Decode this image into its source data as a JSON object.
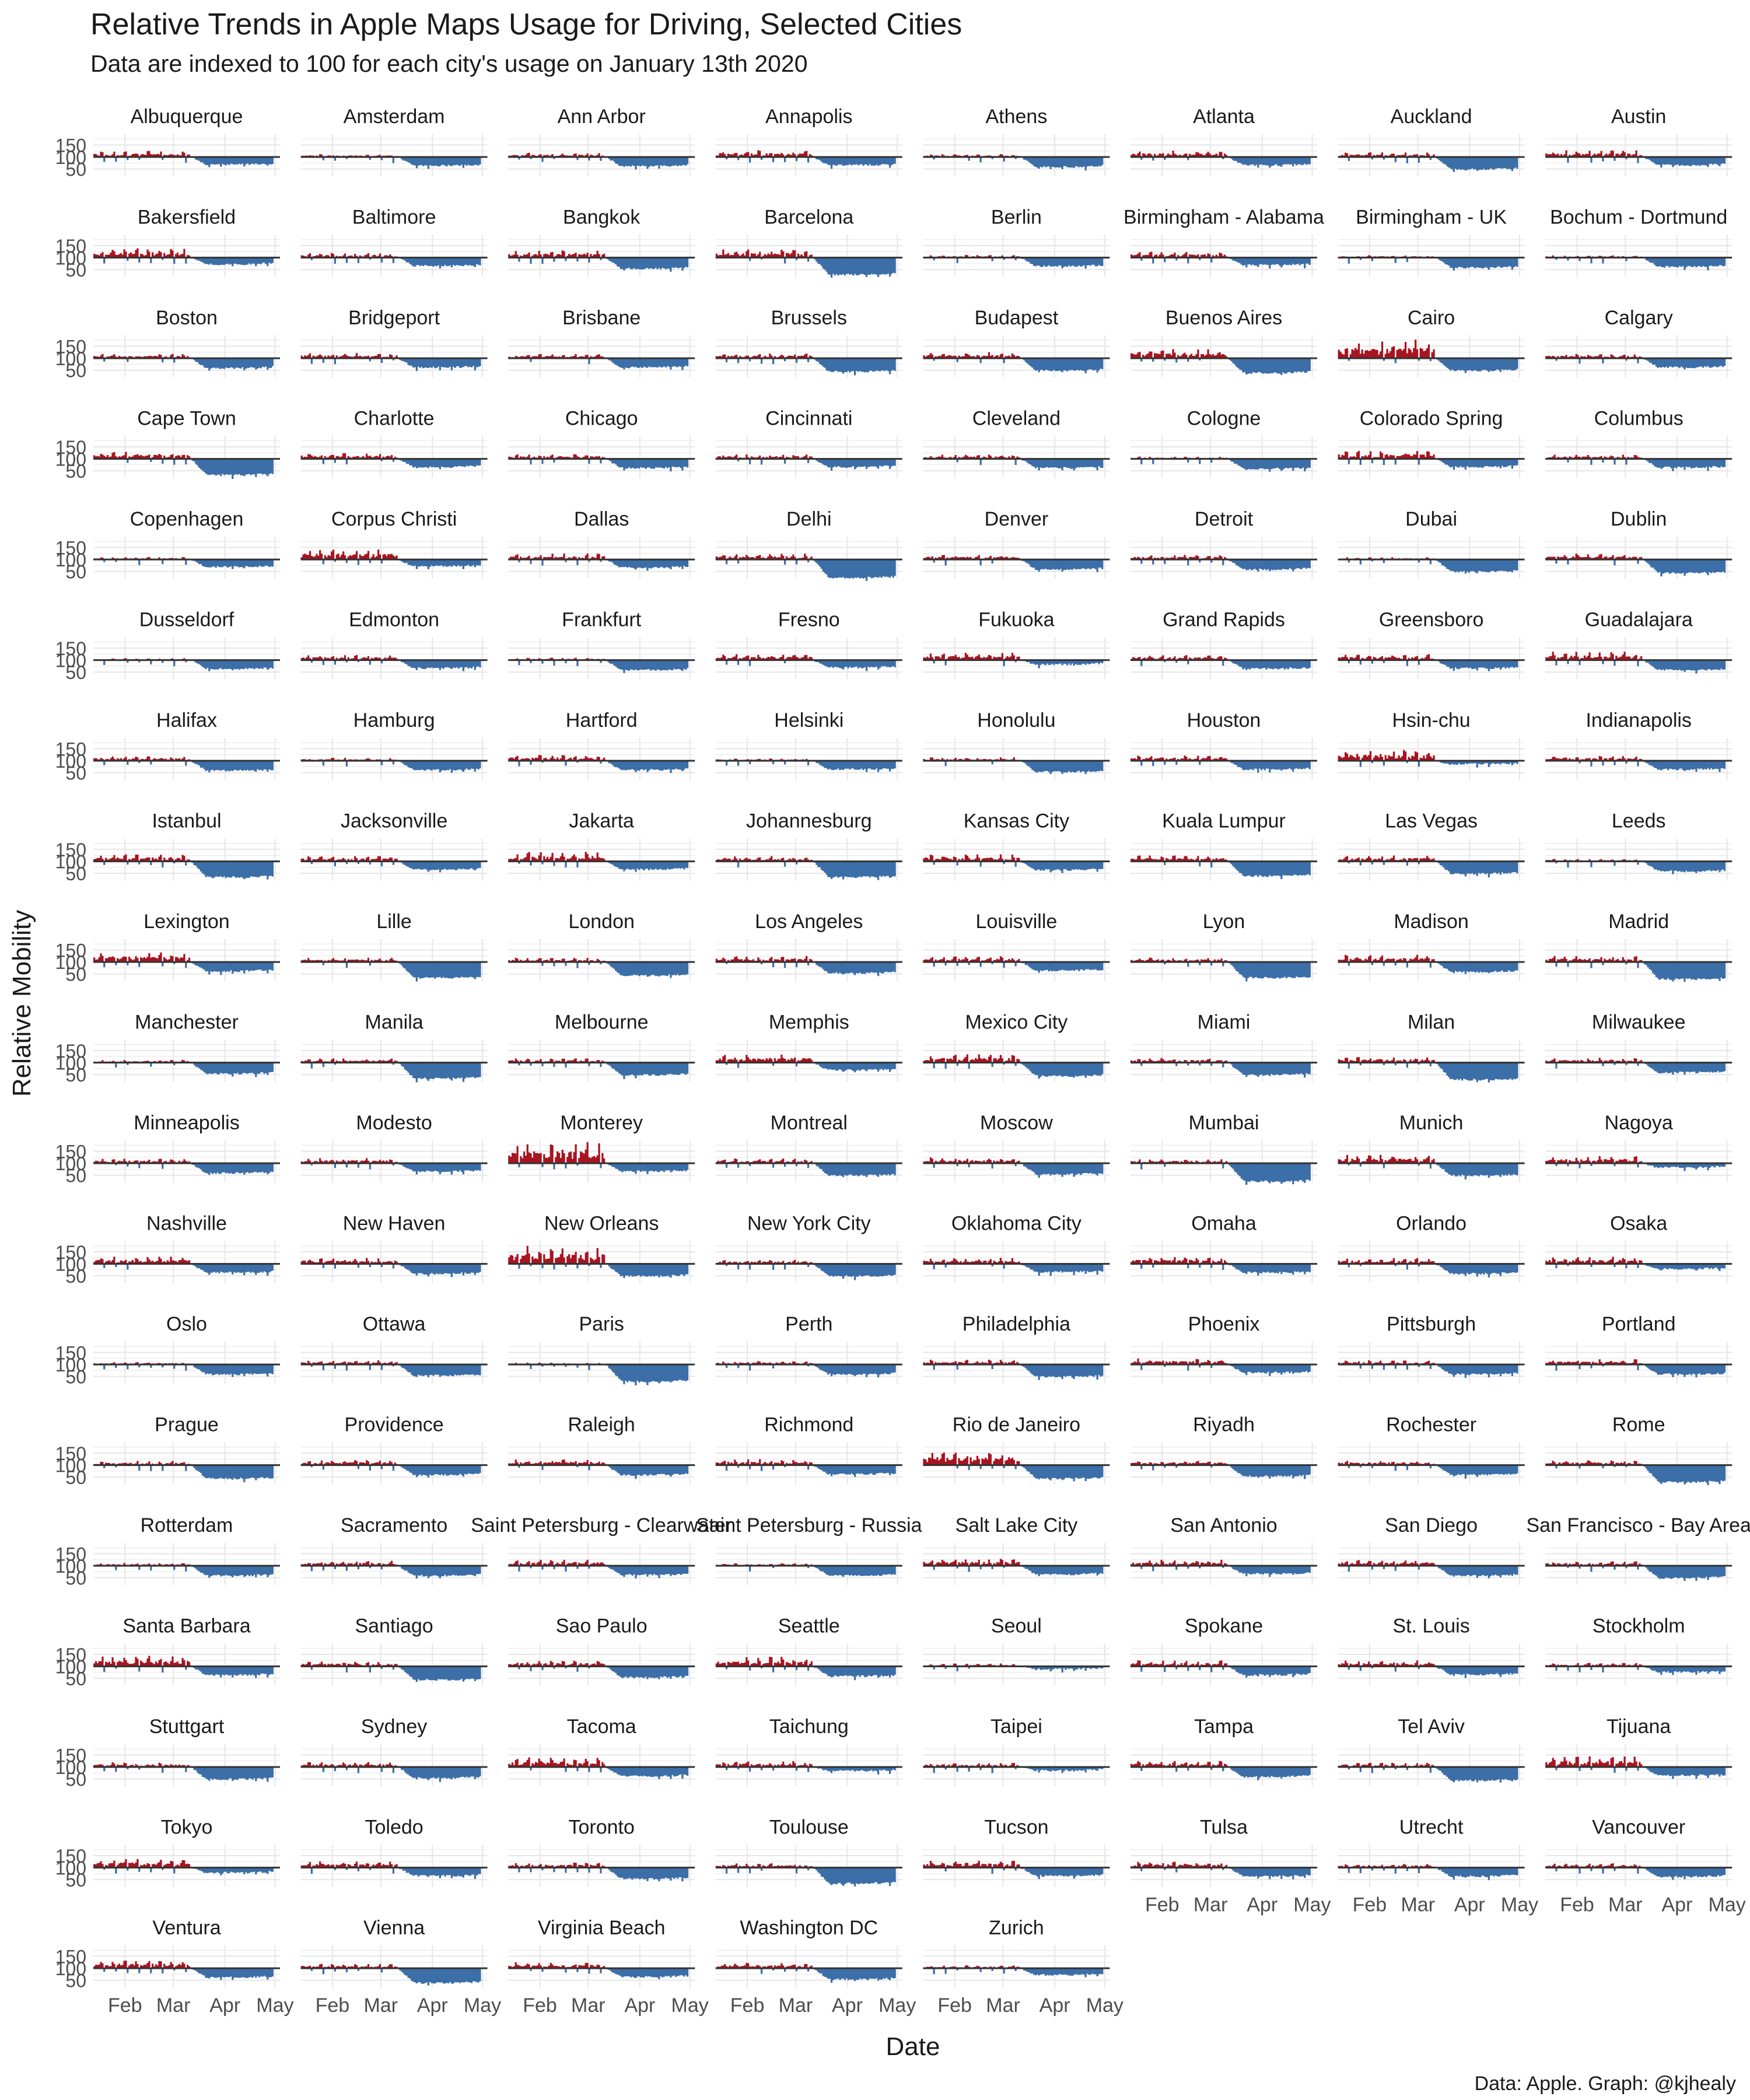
{
  "chart_data": {
    "type": "bar",
    "title": "Relative Trends in Apple Maps Usage for Driving, Selected Cities",
    "subtitle": "Data are indexed to 100 for each city's usage on January 13th 2020",
    "xlabel": "Date",
    "ylabel": "Relative Mobility",
    "caption": "Data: Apple. Graph: @kjhealy",
    "baseline": 100,
    "y_ticks": [
      "50",
      "100",
      "150"
    ],
    "x_ticks": [
      "Feb",
      "Mar",
      "Apr",
      "May"
    ],
    "colors": {
      "above": "#A81420",
      "below": "#3C6EA8",
      "grid": "#e6e6e6",
      "baseline": "#333333"
    },
    "facets": [
      {
        "city": "Albuquerque",
        "peak": 125,
        "trough": 65
      },
      {
        "city": "Amsterdam",
        "peak": 112,
        "trough": 60
      },
      {
        "city": "Ann Arbor",
        "peak": 118,
        "trough": 58
      },
      {
        "city": "Annapolis",
        "peak": 130,
        "trough": 62
      },
      {
        "city": "Athens",
        "peak": 112,
        "trough": 55
      },
      {
        "city": "Atlanta",
        "peak": 128,
        "trough": 62
      },
      {
        "city": "Auckland",
        "peak": 120,
        "trough": 45
      },
      {
        "city": "Austin",
        "peak": 128,
        "trough": 62
      },
      {
        "city": "Bakersfield",
        "peak": 140,
        "trough": 68
      },
      {
        "city": "Baltimore",
        "peak": 120,
        "trough": 62
      },
      {
        "city": "Bangkok",
        "peak": 130,
        "trough": 50
      },
      {
        "city": "Barcelona",
        "peak": 135,
        "trough": 25
      },
      {
        "city": "Berlin",
        "peak": 112,
        "trough": 60
      },
      {
        "city": "Birmingham - Alabama",
        "peak": 125,
        "trough": 65
      },
      {
        "city": "Birmingham - UK",
        "peak": 110,
        "trough": 55
      },
      {
        "city": "Bochum - Dortmund",
        "peak": 110,
        "trough": 58
      },
      {
        "city": "Boston",
        "peak": 118,
        "trough": 55
      },
      {
        "city": "Bridgeport",
        "peak": 122,
        "trough": 58
      },
      {
        "city": "Brisbane",
        "peak": 118,
        "trough": 58
      },
      {
        "city": "Brussels",
        "peak": 120,
        "trough": 40
      },
      {
        "city": "Budapest",
        "peak": 125,
        "trough": 45
      },
      {
        "city": "Buenos Aires",
        "peak": 140,
        "trough": 35
      },
      {
        "city": "Cairo",
        "peak": 180,
        "trough": 45
      },
      {
        "city": "Calgary",
        "peak": 118,
        "trough": 58
      },
      {
        "city": "Cape Town",
        "peak": 130,
        "trough": 30
      },
      {
        "city": "Charlotte",
        "peak": 125,
        "trough": 62
      },
      {
        "city": "Chicago",
        "peak": 120,
        "trough": 58
      },
      {
        "city": "Cincinnati",
        "peak": 120,
        "trough": 62
      },
      {
        "city": "Cleveland",
        "peak": 118,
        "trough": 58
      },
      {
        "city": "Cologne",
        "peak": 110,
        "trough": 55
      },
      {
        "city": "Colorado Spring",
        "peak": 135,
        "trough": 62
      },
      {
        "city": "Columbus",
        "peak": 118,
        "trough": 60
      },
      {
        "city": "Copenhagen",
        "peak": 110,
        "trough": 65
      },
      {
        "city": "Corpus Christi",
        "peak": 145,
        "trough": 68
      },
      {
        "city": "Dallas",
        "peak": 125,
        "trough": 62
      },
      {
        "city": "Delhi",
        "peak": 125,
        "trough": 20
      },
      {
        "city": "Denver",
        "peak": 120,
        "trough": 55
      },
      {
        "city": "Detroit",
        "peak": 120,
        "trough": 55
      },
      {
        "city": "Dubai",
        "peak": 110,
        "trough": 45
      },
      {
        "city": "Dublin",
        "peak": 125,
        "trough": 40
      },
      {
        "city": "Dusseldorf",
        "peak": 108,
        "trough": 60
      },
      {
        "city": "Edmonton",
        "peak": 122,
        "trough": 62
      },
      {
        "city": "Frankfurt",
        "peak": 110,
        "trough": 55
      },
      {
        "city": "Fresno",
        "peak": 125,
        "trough": 65
      },
      {
        "city": "Fukuoka",
        "peak": 132,
        "trough": 78
      },
      {
        "city": "Grand Rapids",
        "peak": 122,
        "trough": 60
      },
      {
        "city": "Greensboro",
        "peak": 125,
        "trough": 62
      },
      {
        "city": "Guadalajara",
        "peak": 135,
        "trough": 55
      },
      {
        "city": "Halifax",
        "peak": 120,
        "trough": 55
      },
      {
        "city": "Hamburg",
        "peak": 112,
        "trough": 58
      },
      {
        "city": "Hartford",
        "peak": 125,
        "trough": 58
      },
      {
        "city": "Helsinki",
        "peak": 110,
        "trough": 60
      },
      {
        "city": "Honolulu",
        "peak": 115,
        "trough": 50
      },
      {
        "city": "Houston",
        "peak": 122,
        "trough": 60
      },
      {
        "city": "Hsin-chu",
        "peak": 145,
        "trough": 82
      },
      {
        "city": "Indianapolis",
        "peak": 120,
        "trough": 60
      },
      {
        "city": "Istanbul",
        "peak": 130,
        "trough": 30
      },
      {
        "city": "Jacksonville",
        "peak": 122,
        "trough": 62
      },
      {
        "city": "Jakarta",
        "peak": 140,
        "trough": 62
      },
      {
        "city": "Johannesburg",
        "peak": 122,
        "trough": 30
      },
      {
        "city": "Kansas City",
        "peak": 130,
        "trough": 60
      },
      {
        "city": "Kuala Lumpur",
        "peak": 125,
        "trough": 35
      },
      {
        "city": "Las Vegas",
        "peak": 125,
        "trough": 45
      },
      {
        "city": "Leeds",
        "peak": 110,
        "trough": 55
      },
      {
        "city": "Lexington",
        "peak": 140,
        "trough": 58
      },
      {
        "city": "Lille",
        "peak": 118,
        "trough": 30
      },
      {
        "city": "London",
        "peak": 118,
        "trough": 40
      },
      {
        "city": "Los Angeles",
        "peak": 125,
        "trough": 50
      },
      {
        "city": "Louisville",
        "peak": 125,
        "trough": 60
      },
      {
        "city": "Lyon",
        "peak": 120,
        "trough": 30
      },
      {
        "city": "Madison",
        "peak": 130,
        "trough": 55
      },
      {
        "city": "Madrid",
        "peak": 125,
        "trough": 25
      },
      {
        "city": "Manchester",
        "peak": 112,
        "trough": 50
      },
      {
        "city": "Manila",
        "peak": 118,
        "trough": 30
      },
      {
        "city": "Melbourne",
        "peak": 118,
        "trough": 45
      },
      {
        "city": "Memphis",
        "peak": 135,
        "trough": 65
      },
      {
        "city": "Mexico City",
        "peak": 135,
        "trough": 40
      },
      {
        "city": "Miami",
        "peak": 120,
        "trough": 45
      },
      {
        "city": "Milan",
        "peak": 125,
        "trough": 25
      },
      {
        "city": "Milwaukee",
        "peak": 120,
        "trough": 55
      },
      {
        "city": "Minneapolis",
        "peak": 120,
        "trough": 55
      },
      {
        "city": "Modesto",
        "peak": 122,
        "trough": 62
      },
      {
        "city": "Monterey",
        "peak": 190,
        "trough": 62
      },
      {
        "city": "Montreal",
        "peak": 120,
        "trough": 45
      },
      {
        "city": "Moscow",
        "peak": 125,
        "trough": 50
      },
      {
        "city": "Mumbai",
        "peak": 118,
        "trough": 20
      },
      {
        "city": "Munich",
        "peak": 135,
        "trough": 45
      },
      {
        "city": "Nagoya",
        "peak": 130,
        "trough": 78
      },
      {
        "city": "Nashville",
        "peak": 130,
        "trough": 60
      },
      {
        "city": "New Haven",
        "peak": 125,
        "trough": 55
      },
      {
        "city": "New Orleans",
        "peak": 175,
        "trough": 45
      },
      {
        "city": "New York City",
        "peak": 118,
        "trough": 45
      },
      {
        "city": "Oklahoma City",
        "peak": 125,
        "trough": 62
      },
      {
        "city": "Omaha",
        "peak": 130,
        "trough": 60
      },
      {
        "city": "Orlando",
        "peak": 125,
        "trough": 55
      },
      {
        "city": "Osaka",
        "peak": 130,
        "trough": 75
      },
      {
        "city": "Oslo",
        "peak": 110,
        "trough": 55
      },
      {
        "city": "Ottawa",
        "peak": 118,
        "trough": 50
      },
      {
        "city": "Paris",
        "peak": 108,
        "trough": 25
      },
      {
        "city": "Perth",
        "peak": 115,
        "trough": 55
      },
      {
        "city": "Philadelphia",
        "peak": 120,
        "trough": 45
      },
      {
        "city": "Phoenix",
        "peak": 125,
        "trough": 62
      },
      {
        "city": "Pittsburgh",
        "peak": 118,
        "trough": 55
      },
      {
        "city": "Portland",
        "peak": 122,
        "trough": 55
      },
      {
        "city": "Prague",
        "peak": 118,
        "trough": 40
      },
      {
        "city": "Providence",
        "peak": 122,
        "trough": 55
      },
      {
        "city": "Raleigh",
        "peak": 125,
        "trough": 55
      },
      {
        "city": "Richmond",
        "peak": 125,
        "trough": 58
      },
      {
        "city": "Rio de Janeiro",
        "peak": 160,
        "trough": 40
      },
      {
        "city": "Riyadh",
        "peak": 118,
        "trough": 50
      },
      {
        "city": "Rochester",
        "peak": 120,
        "trough": 55
      },
      {
        "city": "Rome",
        "peak": 122,
        "trough": 25
      },
      {
        "city": "Rotterdam",
        "peak": 112,
        "trough": 55
      },
      {
        "city": "Sacramento",
        "peak": 122,
        "trough": 55
      },
      {
        "city": "Saint Petersburg - Clearwater",
        "peak": 125,
        "trough": 58
      },
      {
        "city": "Saint Petersburg - Russia",
        "peak": 110,
        "trough": 55
      },
      {
        "city": "Salt Lake City",
        "peak": 130,
        "trough": 60
      },
      {
        "city": "San Antonio",
        "peak": 125,
        "trough": 62
      },
      {
        "city": "San Diego",
        "peak": 125,
        "trough": 55
      },
      {
        "city": "San Francisco - Bay Area",
        "peak": 118,
        "trough": 45
      },
      {
        "city": "Santa Barbara",
        "peak": 145,
        "trough": 60
      },
      {
        "city": "Santiago",
        "peak": 120,
        "trough": 40
      },
      {
        "city": "Sao Paulo",
        "peak": 125,
        "trough": 50
      },
      {
        "city": "Seattle",
        "peak": 140,
        "trough": 55
      },
      {
        "city": "Seoul",
        "peak": 112,
        "trough": 85
      },
      {
        "city": "Spokane",
        "peak": 125,
        "trough": 60
      },
      {
        "city": "St. Louis",
        "peak": 125,
        "trough": 62
      },
      {
        "city": "Stockholm",
        "peak": 115,
        "trough": 72
      },
      {
        "city": "Stuttgart",
        "peak": 120,
        "trough": 45
      },
      {
        "city": "Sydney",
        "peak": 122,
        "trough": 50
      },
      {
        "city": "Tacoma",
        "peak": 140,
        "trough": 58
      },
      {
        "city": "Taichung",
        "peak": 125,
        "trough": 80
      },
      {
        "city": "Taipei",
        "peak": 118,
        "trough": 82
      },
      {
        "city": "Tampa",
        "peak": 125,
        "trough": 55
      },
      {
        "city": "Tel Aviv",
        "peak": 118,
        "trough": 40
      },
      {
        "city": "Tijuana",
        "peak": 145,
        "trough": 60
      },
      {
        "city": "Tokyo",
        "peak": 138,
        "trough": 75
      },
      {
        "city": "Toledo",
        "peak": 128,
        "trough": 62
      },
      {
        "city": "Toronto",
        "peak": 122,
        "trough": 50
      },
      {
        "city": "Toulouse",
        "peak": 118,
        "trough": 30
      },
      {
        "city": "Tucson",
        "peak": 130,
        "trough": 62
      },
      {
        "city": "Tulsa",
        "peak": 125,
        "trough": 60
      },
      {
        "city": "Utrecht",
        "peak": 115,
        "trough": 60
      },
      {
        "city": "Vancouver",
        "peak": 118,
        "trough": 58
      },
      {
        "city": "Ventura",
        "peak": 135,
        "trough": 58
      },
      {
        "city": "Vienna",
        "peak": 118,
        "trough": 35
      },
      {
        "city": "Virginia Beach",
        "peak": 125,
        "trough": 60
      },
      {
        "city": "Washington DC",
        "peak": 122,
        "trough": 50
      },
      {
        "city": "Zurich",
        "peak": 112,
        "trough": 68
      }
    ]
  }
}
